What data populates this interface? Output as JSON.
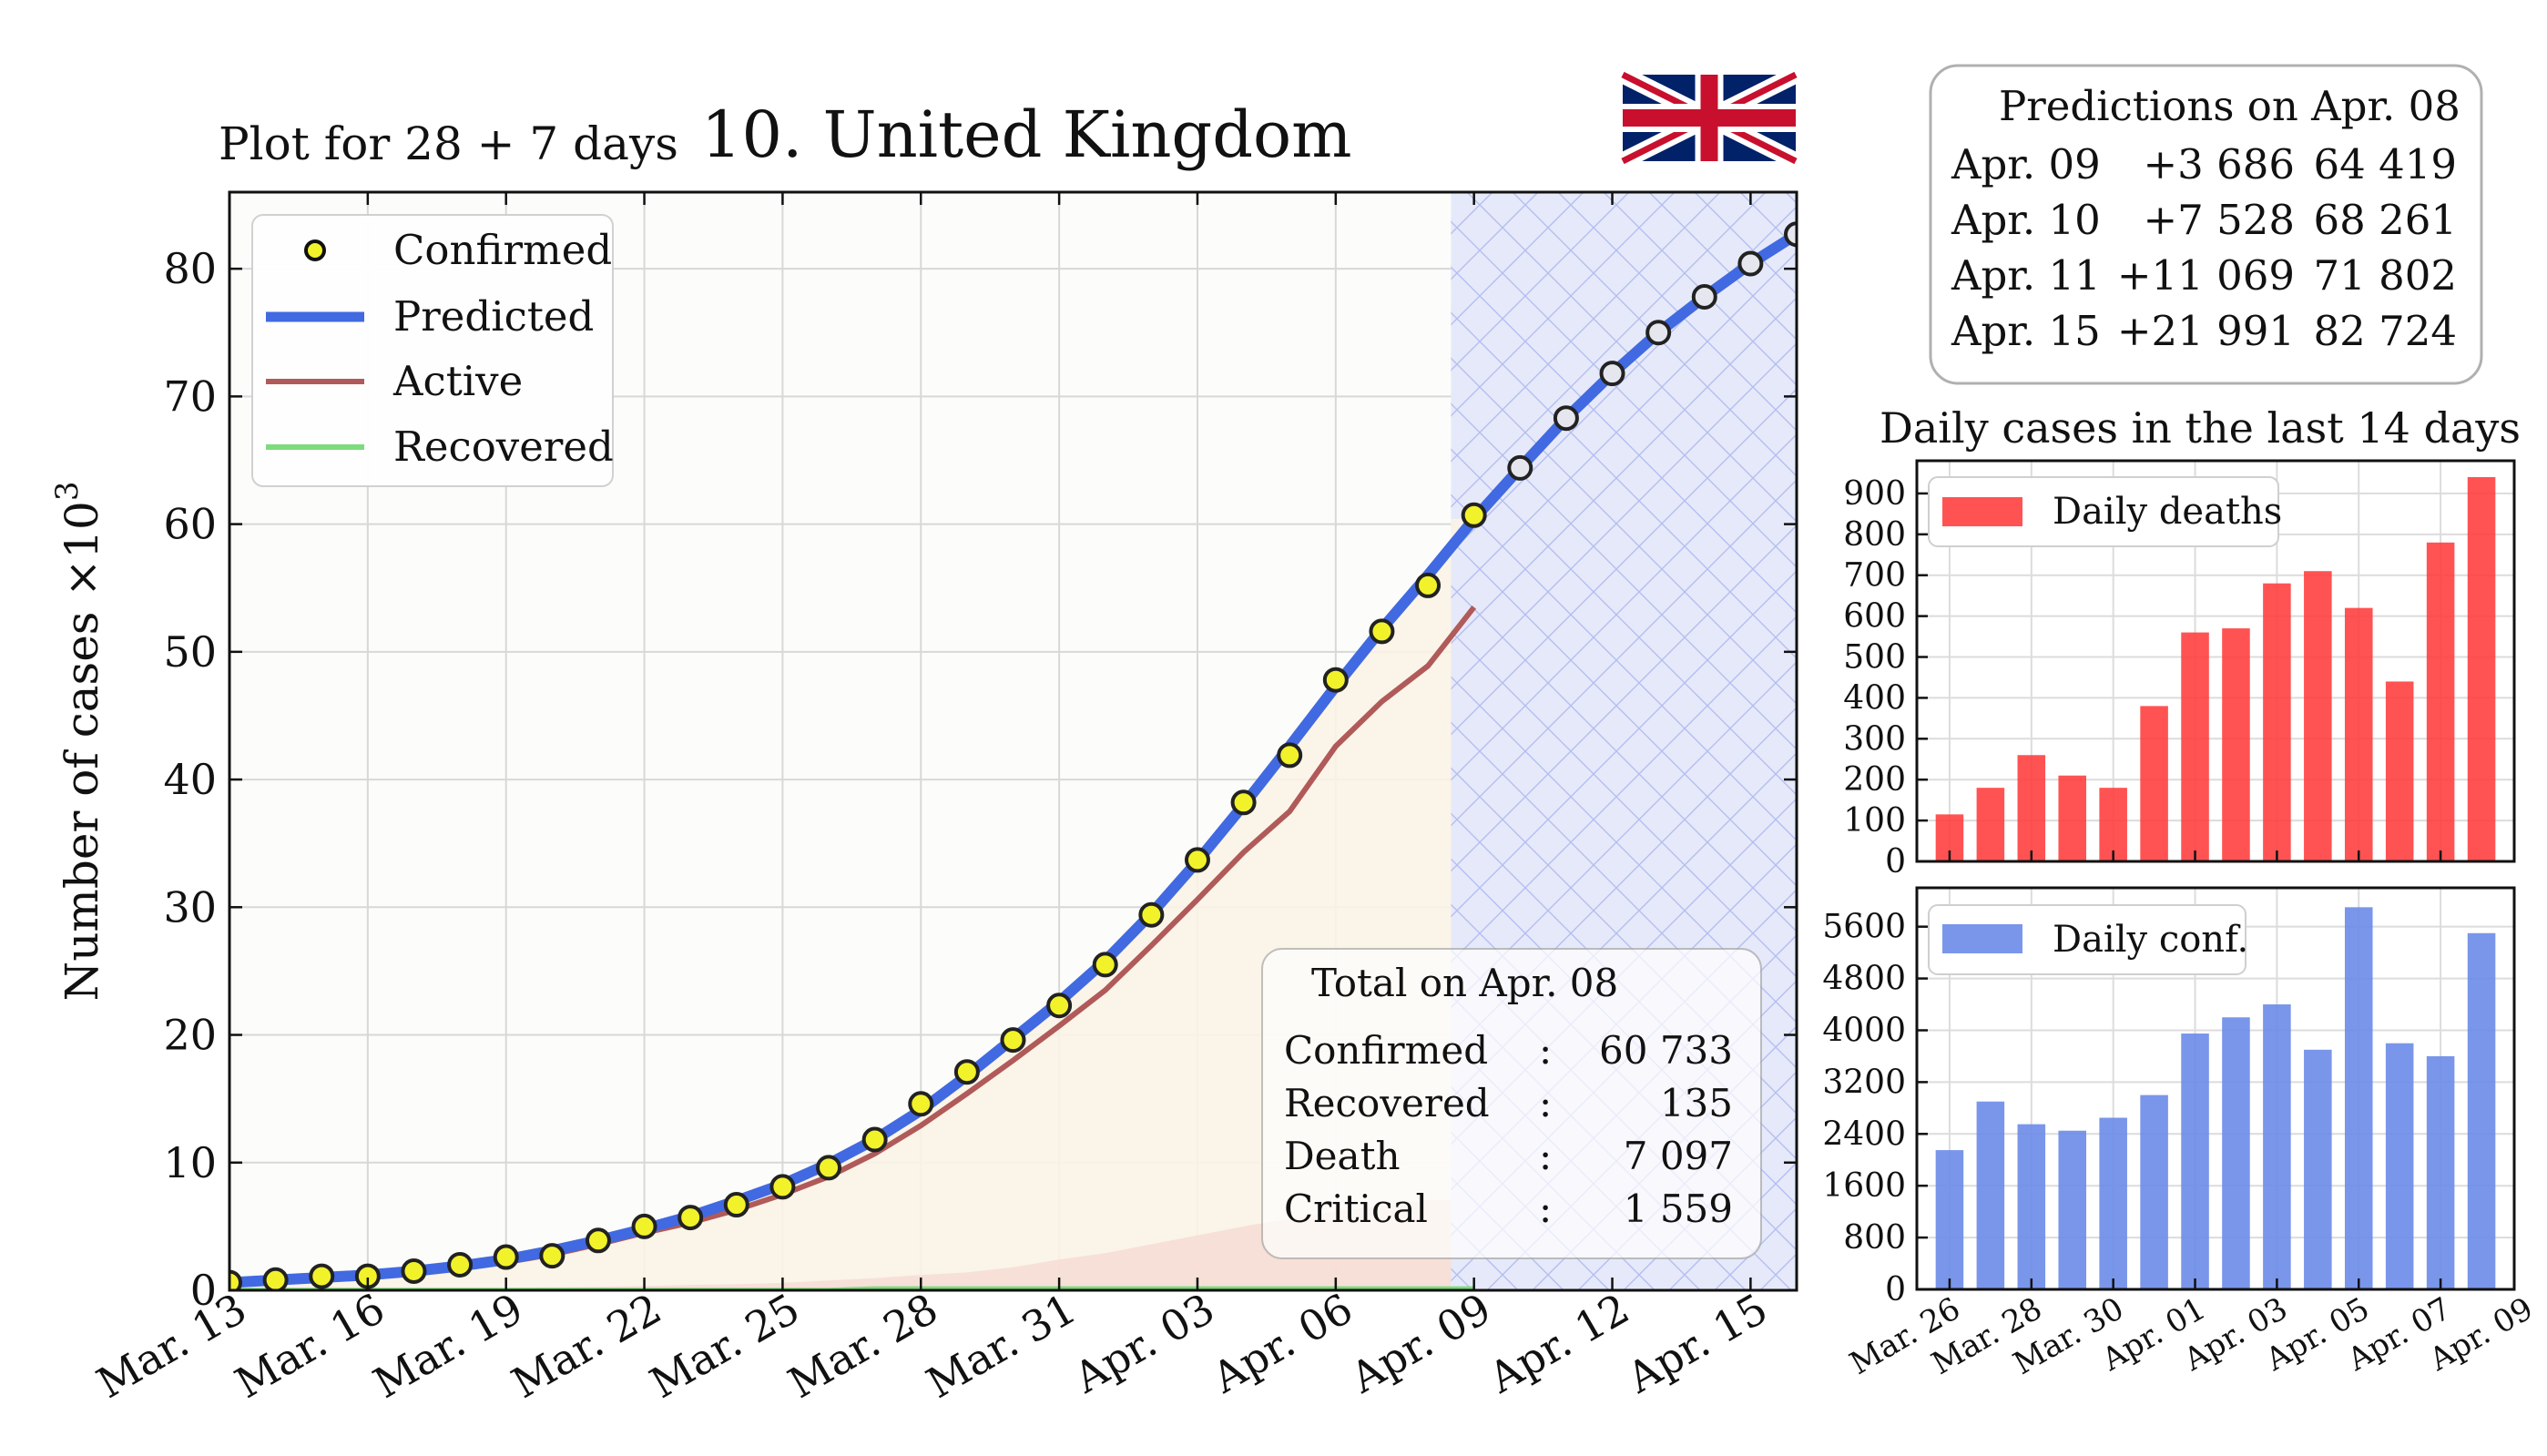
{
  "header": {
    "subtitle": "Plot for 28 + 7 days",
    "title": "10. United Kingdom"
  },
  "predictions": {
    "title": "Predictions on Apr. 08",
    "rows": [
      {
        "date": "Apr. 09",
        "delta": "+3 686",
        "total": "64 419"
      },
      {
        "date": "Apr. 10",
        "delta": "+7 528",
        "total": "68 261"
      },
      {
        "date": "Apr. 11",
        "delta": "+11 069",
        "total": "71 802"
      },
      {
        "date": "Apr. 15",
        "delta": "+21 991",
        "total": "82 724"
      }
    ]
  },
  "totals": {
    "title": "Total on Apr. 08",
    "separator": ":",
    "rows": [
      {
        "label": "Confirmed",
        "value": "60 733"
      },
      {
        "label": "Recovered",
        "value": "135"
      },
      {
        "label": "Death",
        "value": "7 097"
      },
      {
        "label": "Critical",
        "value": "1 559"
      }
    ]
  },
  "colors": {
    "predicted": "#4169e1",
    "active": "#b05a5a",
    "recovered": "#7cdc7c",
    "confirmed_marker": "#f2f22a",
    "deaths_bar": "#ff3b3b",
    "conf_bar": "#6b8be8",
    "flag_blue": "#012169",
    "flag_red": "#c8102e"
  },
  "chart_data": [
    {
      "type": "line",
      "ylabel": "Number of cases ×10",
      "ylabel_exponent": "3",
      "ylim": [
        0,
        86
      ],
      "yticks": [
        0,
        10,
        20,
        30,
        40,
        50,
        60,
        70,
        80
      ],
      "xticks": [
        "Mar. 13",
        "Mar. 16",
        "Mar. 19",
        "Mar. 22",
        "Mar. 25",
        "Mar. 28",
        "Mar. 31",
        "Apr. 03",
        "Apr. 06",
        "Apr. 09",
        "Apr. 12",
        "Apr. 15"
      ],
      "xtick_day_offsets": [
        0,
        3,
        6,
        9,
        12,
        15,
        18,
        21,
        24,
        27,
        30,
        33
      ],
      "x_start": "Mar. 13",
      "xlim_days": [
        0,
        34
      ],
      "legend": [
        "Confirmed",
        "Predicted",
        "Active",
        "Recovered"
      ],
      "legend_position": "top-left",
      "grid": true,
      "prediction_start_day": 26.5,
      "confirmed": [
        0.6,
        0.8,
        1.1,
        1.1,
        1.5,
        2.0,
        2.6,
        2.7,
        3.9,
        5.0,
        5.7,
        6.7,
        8.1,
        9.6,
        11.8,
        14.6,
        17.1,
        19.6,
        22.3,
        25.5,
        29.4,
        33.7,
        38.2,
        41.9,
        47.8,
        51.6,
        55.2,
        60.7,
        64.4,
        68.3,
        71.8,
        75.0,
        77.8,
        80.4,
        82.7
      ],
      "predicted": [
        0.6,
        0.8,
        1.0,
        1.2,
        1.5,
        1.9,
        2.4,
        3.1,
        3.9,
        4.8,
        5.8,
        7.0,
        8.3,
        9.9,
        11.8,
        14.1,
        16.8,
        19.7,
        22.6,
        25.8,
        29.5,
        33.6,
        38.0,
        42.6,
        47.3,
        51.8,
        56.0,
        60.4,
        64.4,
        68.3,
        71.8,
        75.0,
        77.8,
        80.4,
        82.7
      ],
      "active": [
        0.5,
        0.7,
        0.9,
        1.1,
        1.4,
        1.8,
        2.2,
        2.8,
        3.6,
        4.5,
        5.3,
        6.3,
        7.5,
        8.9,
        10.7,
        12.9,
        15.4,
        18.0,
        20.7,
        23.5,
        27.0,
        30.6,
        34.3,
        37.5,
        42.6,
        46.1,
        48.9,
        53.5
      ],
      "deaths": [
        0.01,
        0.02,
        0.03,
        0.06,
        0.1,
        0.14,
        0.18,
        0.23,
        0.28,
        0.34,
        0.42,
        0.47,
        0.58,
        0.76,
        0.95,
        1.2,
        1.4,
        1.8,
        2.4,
        2.9,
        3.6,
        4.3,
        5.0,
        5.6,
        6.2,
        6.6,
        7.1
      ],
      "recovered": [
        0.018,
        0.018,
        0.018,
        0.018,
        0.018,
        0.018,
        0.018,
        0.018,
        0.018,
        0.018,
        0.018,
        0.018,
        0.018,
        0.018,
        0.135,
        0.135,
        0.135,
        0.135,
        0.135,
        0.135,
        0.135,
        0.135,
        0.135,
        0.135,
        0.135,
        0.135,
        0.135,
        0.135
      ]
    },
    {
      "type": "bar",
      "title": "Daily cases in the last 14 days",
      "series": [
        {
          "name": "Daily deaths",
          "values": [
            115,
            180,
            260,
            210,
            180,
            380,
            560,
            570,
            680,
            710,
            620,
            440,
            780,
            940
          ]
        }
      ],
      "ylim": [
        0,
        980
      ],
      "yticks": [
        0,
        100,
        200,
        300,
        400,
        500,
        600,
        700,
        800,
        900
      ],
      "legend_position": "top-left"
    },
    {
      "type": "bar",
      "series": [
        {
          "name": "Daily conf.",
          "values": [
            2150,
            2900,
            2550,
            2450,
            2650,
            3000,
            3950,
            4200,
            4400,
            3700,
            5900,
            3800,
            3600,
            5500
          ]
        }
      ],
      "ylim": [
        0,
        6200
      ],
      "yticks": [
        0,
        800,
        1600,
        2400,
        3200,
        4000,
        4800,
        5600
      ],
      "xticks": [
        "Mar. 26",
        "Mar. 28",
        "Mar. 30",
        "Apr. 01",
        "Apr. 03",
        "Apr. 05",
        "Apr. 07",
        "Apr. 09"
      ],
      "legend_position": "top-left"
    }
  ]
}
